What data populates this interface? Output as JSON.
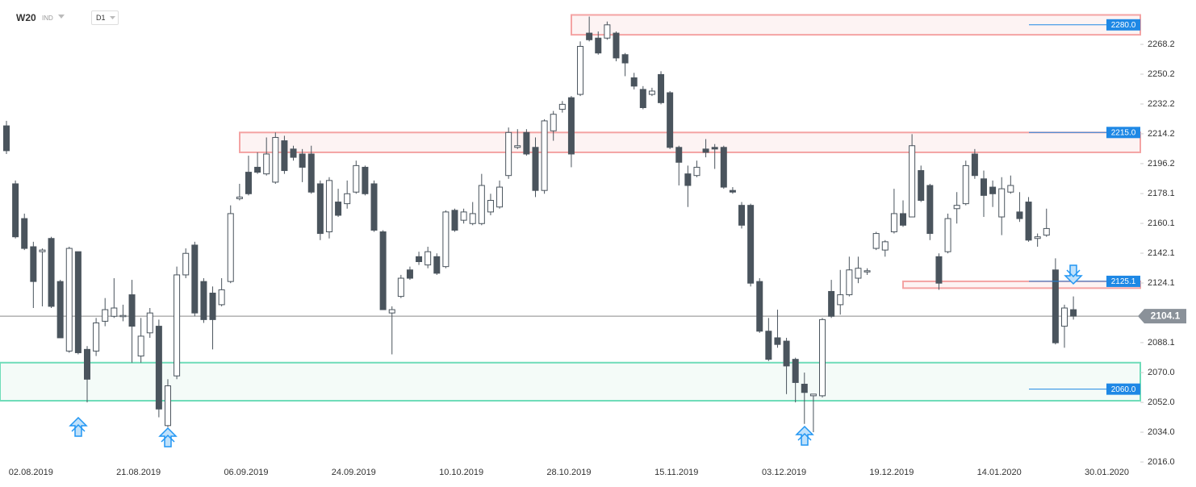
{
  "chart_data": {
    "type": "candlestick",
    "title": "W20",
    "subtitle": "IND",
    "timeframe": "D1",
    "categories": [
      null,
      null,
      null,
      "02.08.2019",
      null,
      null,
      null,
      null,
      null,
      null,
      null,
      null,
      null,
      null,
      null,
      "21.08.2019",
      null,
      null,
      null,
      null,
      null,
      null,
      null,
      null,
      null,
      null,
      null,
      "06.09.2019",
      null,
      null,
      null,
      null,
      null,
      null,
      null,
      null,
      null,
      null,
      null,
      "24.09.2019",
      null,
      null,
      null,
      null,
      null,
      null,
      null,
      null,
      null,
      null,
      null,
      "10.10.2019",
      null,
      null,
      null,
      null,
      null,
      null,
      null,
      null,
      null,
      null,
      null,
      "28.10.2019",
      null,
      null,
      null,
      null,
      null,
      null,
      null,
      null,
      null,
      null,
      null,
      "15.11.2019",
      null,
      null,
      null,
      null,
      null,
      null,
      null,
      null,
      null,
      null,
      null,
      "03.12.2019",
      null,
      null,
      null,
      null,
      null,
      null,
      null,
      null,
      null,
      null,
      null,
      "19.12.2019",
      null,
      null,
      null,
      null,
      null,
      null,
      null,
      null,
      null,
      null,
      null,
      "14.01.2020",
      null,
      null,
      null,
      null,
      null,
      null,
      null,
      null,
      null,
      null,
      null,
      "30.01.2020"
    ],
    "open": [
      2219,
      2184,
      2163,
      2146,
      2143,
      2151,
      2125,
      2083,
      2143,
      2084,
      2083,
      2101,
      2104,
      2104,
      2117,
      2080,
      2094,
      2098,
      2038,
      2068,
      2129,
      2147,
      2125,
      2118,
      2111,
      2125,
      2175,
      2191,
      2194,
      2190,
      2185,
      2210,
      2205,
      2202,
      2202,
      2184,
      2155,
      2173,
      2172,
      2179,
      2194,
      2184,
      2155,
      2106,
      2116,
      2132,
      2140,
      2135,
      2140,
      2134,
      2168,
      2162,
      2160,
      2160,
      2167,
      2170,
      2189,
      2206,
      2215,
      2206,
      2180,
      2216,
      2229,
      2236,
      2238,
      2275,
      2272,
      2272,
      2275,
      2262,
      2248,
      2241,
      2238,
      2250,
      2239,
      2206,
      2190,
      2189,
      2205,
      2206,
      2206,
      2180,
      2171,
      2171,
      2125,
      2095,
      2091,
      2089,
      2078,
      2063,
      2056,
      2056,
      2119,
      2111,
      2117,
      2127,
      2131,
      2145,
      2144,
      2155,
      2166,
      2164,
      2192,
      2183,
      2140,
      2143,
      2169,
      2172,
      2202,
      2187,
      2182,
      2164,
      2179,
      2167,
      2173,
      2151,
      2153,
      2132,
      2098,
      2108,
      null,
      null,
      null,
      null
    ],
    "high": [
      2222,
      2186,
      2166,
      2149,
      2145,
      2152,
      2126,
      2146,
      2143,
      2086,
      2103,
      2115,
      2127,
      2111,
      2126,
      2103,
      2109,
      2102,
      2066,
      2134,
      2145,
      2149,
      2127,
      2122,
      2127,
      2171,
      2184,
      2201,
      2203,
      2212,
      2215,
      2213,
      2207,
      2205,
      2207,
      2186,
      2188,
      2181,
      2186,
      2198,
      2195,
      2186,
      2156,
      2110,
      2129,
      2134,
      2143,
      2146,
      2142,
      2168,
      2169,
      2169,
      2173,
      2190,
      2178,
      2186,
      2218,
      2217,
      2217,
      2212,
      2223,
      2228,
      2234,
      2237,
      2270,
      2285,
      2276,
      2282,
      2276,
      2263,
      2251,
      2243,
      2242,
      2252,
      2240,
      2207,
      2195,
      2198,
      2211,
      2208,
      2207,
      2182,
      2173,
      2172,
      2127,
      2103,
      2108,
      2091,
      2079,
      2070,
      2057,
      2103,
      2126,
      2132,
      2140,
      2140,
      2133,
      2155,
      2150,
      2181,
      2174,
      2214,
      2195,
      2184,
      2142,
      2166,
      2179,
      2198,
      2205,
      2192,
      2186,
      2188,
      2189,
      2179,
      2176,
      2154,
      2169,
      2139,
      2111,
      2116,
      null,
      null,
      null,
      null
    ],
    "low": [
      2202,
      2151,
      2144,
      2109,
      2110,
      2109,
      2091,
      2082,
      2081,
      2052,
      2080,
      2098,
      2103,
      2101,
      2076,
      2076,
      2091,
      2043,
      2037,
      2066,
      2127,
      2104,
      2100,
      2084,
      2110,
      2124,
      2174,
      2177,
      2190,
      2189,
      2184,
      2190,
      2198,
      2185,
      2178,
      2150,
      2151,
      2164,
      2169,
      2178,
      2177,
      2155,
      2108,
      2081,
      2115,
      2126,
      2135,
      2133,
      2129,
      2133,
      2155,
      2160,
      2159,
      2159,
      2165,
      2169,
      2187,
      2205,
      2201,
      2176,
      2178,
      2210,
      2227,
      2194,
      2237,
      2270,
      2262,
      2271,
      2258,
      2249,
      2241,
      2229,
      2237,
      2232,
      2205,
      2183,
      2170,
      2188,
      2200,
      2193,
      2181,
      2178,
      2157,
      2122,
      2094,
      2077,
      2085,
      2057,
      2052,
      2039,
      2034,
      2055,
      2103,
      2105,
      2116,
      2124,
      2129,
      2144,
      2140,
      2154,
      2158,
      2164,
      2173,
      2150,
      2120,
      2142,
      2160,
      2171,
      2187,
      2164,
      2170,
      2153,
      2178,
      2161,
      2149,
      2146,
      2152,
      2087,
      2085,
      2102,
      null,
      null,
      null,
      null
    ],
    "close": [
      2204,
      2152,
      2145,
      2125,
      2144,
      2110,
      2091,
      2145,
      2082,
      2066,
      2100,
      2108,
      2109,
      2104.5,
      2098,
      2092,
      2106,
      2048,
      2062,
      2129,
      2142,
      2106,
      2102,
      2102,
      2120,
      2166,
      2176,
      2178,
      2191,
      2202,
      2212,
      2192,
      2200,
      2194,
      2179,
      2154,
      2186,
      2165,
      2178,
      2195,
      2178,
      2156,
      2108,
      2108,
      2127,
      2127,
      2137,
      2143,
      2130,
      2167,
      2156,
      2167,
      2166,
      2183,
      2174,
      2182,
      2215,
      2207,
      2202,
      2180,
      2222,
      2226,
      2232,
      2202,
      2267,
      2271,
      2263,
      2280,
      2260,
      2257,
      2243,
      2230,
      2240,
      2233,
      2206,
      2197,
      2183,
      2194,
      2203,
      2205,
      2182,
      2179,
      2159,
      2124,
      2095,
      2078,
      2087,
      2074,
      2064,
      2058,
      2057,
      2102,
      2104,
      2117,
      2132,
      2133,
      2131.5,
      2154,
      2149,
      2166,
      2159,
      2207,
      2174,
      2154,
      2124,
      2163,
      2171,
      2195,
      2189,
      2177,
      2178,
      2181,
      2183,
      2163,
      2150,
      2152,
      2157,
      2088,
      2109,
      2104.1,
      null,
      null,
      null,
      null
    ],
    "up_color": "#ffffff",
    "down_color": "#4a545d",
    "last_price": 2104.1,
    "ylim": [
      2016,
      2295
    ],
    "yticks": [
      {
        "value": 2016,
        "label": "2016.0"
      },
      {
        "value": 2034,
        "label": "2034.0"
      },
      {
        "value": 2052,
        "label": "2052.0"
      },
      {
        "value": 2070,
        "label": "2070.0"
      },
      2088.1,
      2124.1,
      2142.1,
      2160.1,
      2178.1,
      2196.2,
      2214.2,
      2232.2,
      2250.2,
      2268.2
    ],
    "zones": [
      {
        "level": {
          "value": 2280,
          "label": "2280.0"
        },
        "low": 2274,
        "high": 2286,
        "color": "#f4a3a3"
      },
      {
        "level": {
          "value": 2215,
          "label": "2215.0"
        },
        "low": 2203,
        "high": 2215,
        "color": "#f4a3a3"
      },
      {
        "level": 2125.1,
        "low": 2121,
        "high": 2125.1,
        "color": "#f4a3a3"
      },
      {
        "level": {
          "value": 2060,
          "label": "2060.0"
        },
        "low": 2053,
        "high": 2076,
        "color": "#6fdcb9"
      }
    ]
  }
}
